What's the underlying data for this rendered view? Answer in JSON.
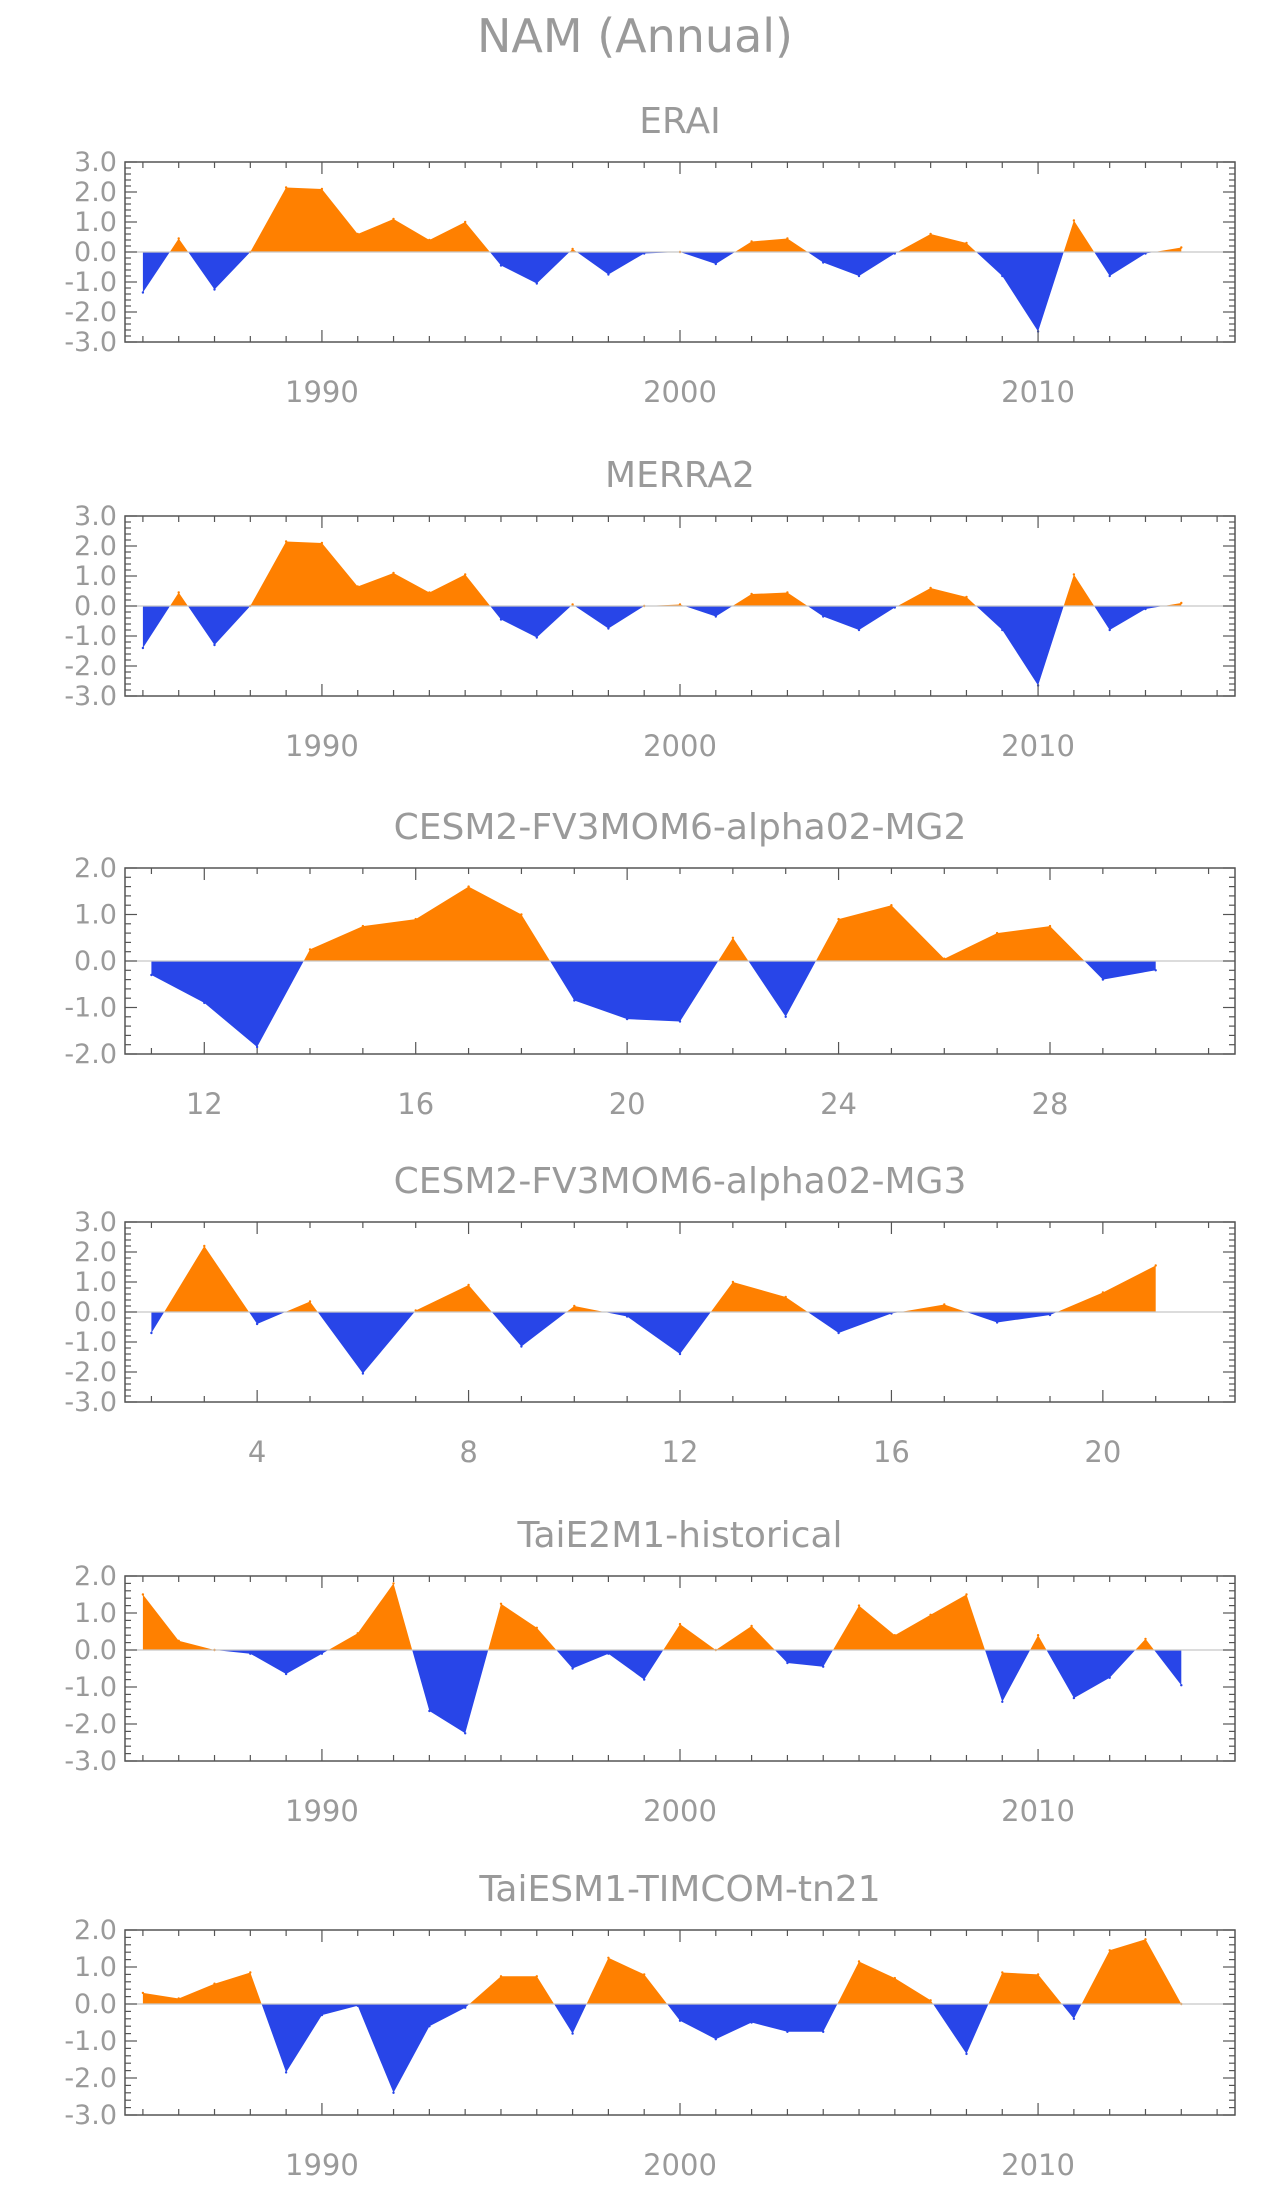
{
  "figure": {
    "title": "NAM (Annual)",
    "colors": {
      "positive": "#ff8000",
      "negative": "#2845e8",
      "axis": "#555555",
      "text": "#9a9a9a"
    }
  },
  "chart_data": [
    {
      "type": "area",
      "title": "ERAI",
      "xlabel": "",
      "ylabel": "",
      "xlim": [
        1984.5,
        2015.5
      ],
      "ylim": [
        -3,
        3
      ],
      "yticks": [
        "3.0",
        "2.0",
        "1.0",
        "0.0",
        "-1.0",
        "-2.0",
        "-3.0"
      ],
      "ytick_values": [
        3,
        2,
        1,
        0,
        -1,
        -2,
        -3
      ],
      "xticks": [
        "1990",
        "2000",
        "2010"
      ],
      "xtick_values": [
        1990,
        2000,
        2010
      ],
      "x": [
        1985,
        1986,
        1987,
        1988,
        1989,
        1990,
        1991,
        1992,
        1993,
        1994,
        1995,
        1996,
        1997,
        1998,
        1999,
        2000,
        2001,
        2002,
        2003,
        2004,
        2005,
        2006,
        2007,
        2008,
        2009,
        2010,
        2011,
        2012,
        2013,
        2014
      ],
      "values": [
        -1.35,
        0.45,
        -1.25,
        0.0,
        2.15,
        2.1,
        0.6,
        1.1,
        0.4,
        1.0,
        -0.45,
        -1.05,
        0.1,
        -0.75,
        -0.05,
        0.0,
        -0.4,
        0.35,
        0.45,
        -0.35,
        -0.8,
        -0.05,
        0.6,
        0.3,
        -0.8,
        -2.65,
        1.05,
        -0.8,
        -0.05,
        0.15
      ],
      "grid": false
    },
    {
      "type": "area",
      "title": "MERRA2",
      "xlabel": "",
      "ylabel": "",
      "xlim": [
        1984.5,
        2015.5
      ],
      "ylim": [
        -3,
        3
      ],
      "yticks": [
        "3.0",
        "2.0",
        "1.0",
        "0.0",
        "-1.0",
        "-2.0",
        "-3.0"
      ],
      "ytick_values": [
        3,
        2,
        1,
        0,
        -1,
        -2,
        -3
      ],
      "xticks": [
        "1990",
        "2000",
        "2010"
      ],
      "xtick_values": [
        1990,
        2000,
        2010
      ],
      "x": [
        1985,
        1986,
        1987,
        1988,
        1989,
        1990,
        1991,
        1992,
        1993,
        1994,
        1995,
        1996,
        1997,
        1998,
        1999,
        2000,
        2001,
        2002,
        2003,
        2004,
        2005,
        2006,
        2007,
        2008,
        2009,
        2010,
        2011,
        2012,
        2013,
        2014
      ],
      "values": [
        -1.4,
        0.45,
        -1.3,
        0.0,
        2.15,
        2.1,
        0.65,
        1.1,
        0.45,
        1.05,
        -0.45,
        -1.05,
        0.05,
        -0.75,
        0.0,
        0.05,
        -0.35,
        0.4,
        0.45,
        -0.35,
        -0.8,
        -0.05,
        0.6,
        0.3,
        -0.8,
        -2.65,
        1.05,
        -0.8,
        -0.1,
        0.1
      ],
      "grid": false
    },
    {
      "type": "area",
      "title": "CESM2-FV3MOM6-alpha02-MG2",
      "xlabel": "",
      "ylabel": "",
      "xlim": [
        10.5,
        31.5
      ],
      "ylim": [
        -2,
        2
      ],
      "yticks": [
        "2.0",
        "1.0",
        "0.0",
        "-1.0",
        "-2.0"
      ],
      "ytick_values": [
        2,
        1,
        0,
        -1,
        -2
      ],
      "xticks": [
        "12",
        "16",
        "20",
        "24",
        "28"
      ],
      "xtick_values": [
        12,
        16,
        20,
        24,
        28
      ],
      "x": [
        11,
        12,
        13,
        14,
        15,
        16,
        17,
        18,
        19,
        20,
        21,
        22,
        23,
        24,
        25,
        26,
        27,
        28,
        29,
        30
      ],
      "values": [
        -0.3,
        -0.9,
        -1.85,
        0.25,
        0.75,
        0.9,
        1.6,
        1.0,
        -0.85,
        -1.25,
        -1.3,
        0.5,
        -1.2,
        0.9,
        1.2,
        0.05,
        0.6,
        0.75,
        -0.4,
        -0.2
      ],
      "grid": false
    },
    {
      "type": "area",
      "title": "CESM2-FV3MOM6-alpha02-MG3",
      "xlabel": "",
      "ylabel": "",
      "xlim": [
        1.5,
        22.5
      ],
      "ylim": [
        -3,
        3
      ],
      "yticks": [
        "3.0",
        "2.0",
        "1.0",
        "0.0",
        "-1.0",
        "-2.0",
        "-3.0"
      ],
      "ytick_values": [
        3,
        2,
        1,
        0,
        -1,
        -2,
        -3
      ],
      "xticks": [
        "4",
        "8",
        "12",
        "16",
        "20"
      ],
      "xtick_values": [
        4,
        8,
        12,
        16,
        20
      ],
      "x": [
        2,
        3,
        4,
        5,
        6,
        7,
        8,
        9,
        10,
        11,
        12,
        13,
        14,
        15,
        16,
        17,
        18,
        19,
        20,
        21
      ],
      "values": [
        -0.7,
        2.2,
        -0.4,
        0.35,
        -2.05,
        0.05,
        0.9,
        -1.15,
        0.2,
        -0.15,
        -1.4,
        1.0,
        0.5,
        -0.7,
        -0.05,
        0.25,
        -0.35,
        -0.1,
        0.65,
        1.55
      ],
      "grid": false
    },
    {
      "type": "area",
      "title": "TaiE2M1-historical",
      "xlabel": "",
      "ylabel": "",
      "xlim": [
        1984.5,
        2015.5
      ],
      "ylim": [
        -3,
        2
      ],
      "yticks": [
        "2.0",
        "1.0",
        "0.0",
        "-1.0",
        "-2.0",
        "-3.0"
      ],
      "ytick_values": [
        2,
        1,
        0,
        -1,
        -2,
        -3
      ],
      "xticks": [
        "1990",
        "2000",
        "2010"
      ],
      "xtick_values": [
        1990,
        2000,
        2010
      ],
      "x": [
        1985,
        1986,
        1987,
        1988,
        1989,
        1990,
        1991,
        1992,
        1993,
        1994,
        1995,
        1996,
        1997,
        1998,
        1999,
        2000,
        2001,
        2002,
        2003,
        2004,
        2005,
        2006,
        2007,
        2008,
        2009,
        2010,
        2011,
        2012,
        2013,
        2014
      ],
      "values": [
        1.5,
        0.25,
        0.0,
        -0.1,
        -0.65,
        -0.1,
        0.45,
        1.8,
        -1.65,
        -2.25,
        1.25,
        0.6,
        -0.5,
        -0.1,
        -0.8,
        0.7,
        0.0,
        0.65,
        -0.35,
        -0.45,
        1.2,
        0.4,
        0.95,
        1.5,
        -1.4,
        0.4,
        -1.3,
        -0.75,
        0.3,
        -0.95
      ],
      "grid": false
    },
    {
      "type": "area",
      "title": "TaiESM1-TIMCOM-tn21",
      "xlabel": "",
      "ylabel": "",
      "xlim": [
        1984.5,
        2015.5
      ],
      "ylim": [
        -3,
        2
      ],
      "yticks": [
        "2.0",
        "1.0",
        "0.0",
        "-1.0",
        "-2.0",
        "-3.0"
      ],
      "ytick_values": [
        2,
        1,
        0,
        -1,
        -2,
        -3
      ],
      "xticks": [
        "1990",
        "2000",
        "2010"
      ],
      "xtick_values": [
        1990,
        2000,
        2010
      ],
      "x": [
        1985,
        1986,
        1987,
        1988,
        1989,
        1990,
        1991,
        1992,
        1993,
        1994,
        1995,
        1996,
        1997,
        1998,
        1999,
        2000,
        2001,
        2002,
        2003,
        2004,
        2005,
        2006,
        2007,
        2008,
        2009,
        2010,
        2011,
        2012,
        2013,
        2014
      ],
      "values": [
        0.3,
        0.15,
        0.55,
        0.85,
        -1.85,
        -0.3,
        -0.05,
        -2.4,
        -0.6,
        -0.1,
        0.75,
        0.75,
        -0.8,
        1.25,
        0.8,
        -0.45,
        -0.95,
        -0.5,
        -0.75,
        -0.75,
        1.15,
        0.7,
        0.1,
        -1.35,
        0.85,
        0.8,
        -0.4,
        1.45,
        1.75,
        0.0
      ],
      "grid": false
    }
  ]
}
